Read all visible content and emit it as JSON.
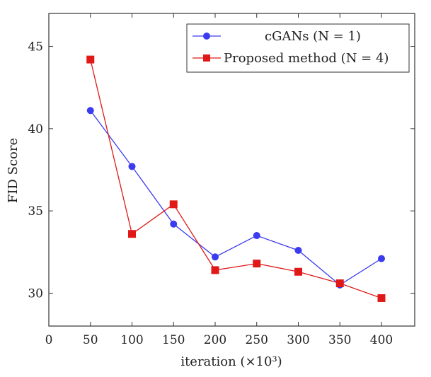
{
  "chart_data": {
    "type": "line",
    "xlabel": "iteration (×10³)",
    "ylabel": "FID Score",
    "xlim": [
      0,
      440
    ],
    "ylim": [
      28,
      47
    ],
    "x_ticks": [
      0,
      50,
      100,
      150,
      200,
      250,
      300,
      350,
      400
    ],
    "y_ticks": [
      30,
      35,
      40,
      45
    ],
    "grid": false,
    "legend_position": "top-right",
    "series": [
      {
        "name": "cGANs (N = 1)",
        "color": "#3b3bf0",
        "marker": "circle",
        "x": [
          50,
          100,
          150,
          200,
          250,
          300,
          350,
          400
        ],
        "y": [
          41.1,
          37.7,
          34.2,
          32.2,
          33.5,
          32.6,
          30.5,
          32.1
        ]
      },
      {
        "name": "Proposed method (N = 4)",
        "color": "#e01818",
        "marker": "square",
        "x": [
          50,
          100,
          150,
          200,
          250,
          300,
          350,
          400
        ],
        "y": [
          44.2,
          33.6,
          35.4,
          31.4,
          31.8,
          31.3,
          30.6,
          29.7
        ]
      }
    ]
  }
}
